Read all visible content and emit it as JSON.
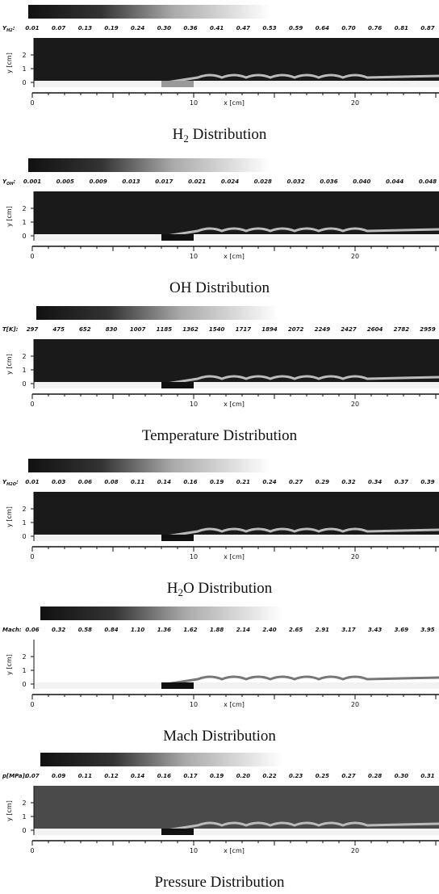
{
  "axes": {
    "y_label": "y [cm]",
    "x_label": "x [cm]",
    "y_ticks": [
      "0",
      "1",
      "2"
    ],
    "x_ticks": [
      "0",
      "10",
      "20"
    ]
  },
  "panels": [
    {
      "symbol": "Y",
      "symbol_sub": "H2",
      "colon": ":",
      "plot_color": "#1a1a1a",
      "levels": [
        "0.01",
        "0.07",
        "0.13",
        "0.19",
        "0.24",
        "0.30",
        "0.36",
        "0.41",
        "0.47",
        "0.53",
        "0.59",
        "0.64",
        "0.70",
        "0.76",
        "0.81",
        "0.87"
      ],
      "caption": [
        {
          "text": "H"
        },
        {
          "text": "2",
          "sub": true
        },
        {
          "text": " Distribution"
        }
      ]
    },
    {
      "symbol": "Y",
      "symbol_sub": "OH",
      "colon": ":",
      "plot_color": "#1a1a1a",
      "levels": [
        "0.001",
        "0.005",
        "0.009",
        "0.013",
        "0.017",
        "0.021",
        "0.024",
        "0.028",
        "0.032",
        "0.036",
        "0.040",
        "0.044",
        "0.048"
      ],
      "caption": [
        {
          "text": "OH Distribution"
        }
      ]
    },
    {
      "symbol": "T[K]:",
      "plot_color": "#1a1a1a",
      "levels": [
        "297",
        "475",
        "652",
        "830",
        "1007",
        "1185",
        "1362",
        "1540",
        "1717",
        "1894",
        "2072",
        "2249",
        "2427",
        "2604",
        "2782",
        "2959"
      ],
      "caption": [
        {
          "text": "Temperature Distribution"
        }
      ]
    },
    {
      "symbol": "Y",
      "symbol_sub": "H2O",
      "colon": ":",
      "plot_color": "#1a1a1a",
      "levels": [
        "0.01",
        "0.03",
        "0.06",
        "0.08",
        "0.11",
        "0.14",
        "0.16",
        "0.19",
        "0.21",
        "0.24",
        "0.27",
        "0.29",
        "0.32",
        "0.34",
        "0.37",
        "0.39"
      ],
      "caption": [
        {
          "text": "H"
        },
        {
          "text": "2",
          "sub": true
        },
        {
          "text": "O Distribution"
        }
      ]
    },
    {
      "symbol": "Mach:",
      "plot_color": "#ffffff",
      "levels": [
        "0.06",
        "0.32",
        "0.58",
        "0.84",
        "1.10",
        "1.36",
        "1.62",
        "1.88",
        "2.14",
        "2.40",
        "2.65",
        "2.91",
        "3.17",
        "3.43",
        "3.69",
        "3.95"
      ],
      "caption": [
        {
          "text": "Mach Distribution"
        }
      ]
    },
    {
      "symbol": "p[MPa]:",
      "plot_color": "#4a4a4a",
      "levels": [
        "0.07",
        "0.09",
        "0.11",
        "0.12",
        "0.14",
        "0.16",
        "0.17",
        "0.19",
        "0.20",
        "0.22",
        "0.23",
        "0.25",
        "0.27",
        "0.28",
        "0.30",
        "0.31"
      ],
      "caption": [
        {
          "text": "Pressure Distribution"
        }
      ]
    }
  ]
}
